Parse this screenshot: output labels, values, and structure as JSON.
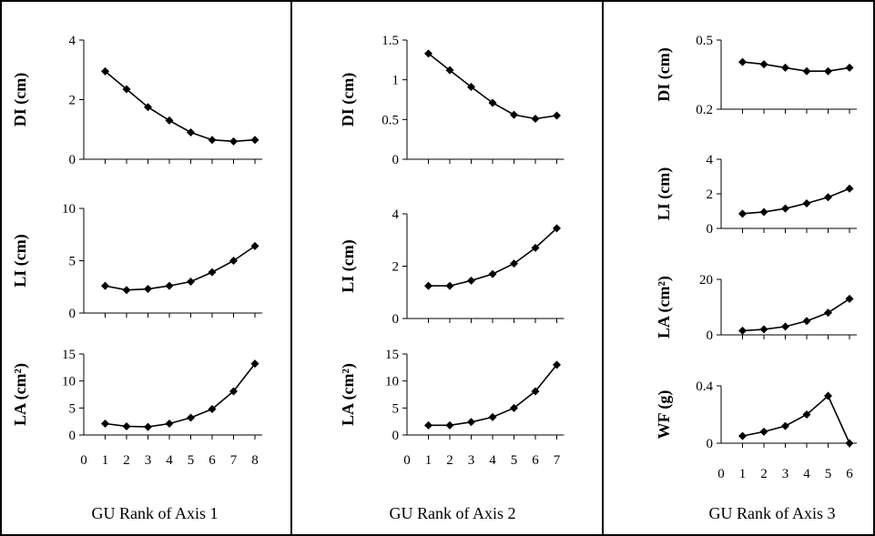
{
  "chart_data": [
    {
      "type": "line",
      "caption": "GU Rank of Axis 1",
      "x": [
        1,
        2,
        3,
        4,
        5,
        6,
        7,
        8
      ],
      "xlim": [
        0,
        8
      ],
      "xticks": [
        0,
        1,
        2,
        3,
        4,
        5,
        6,
        7,
        8
      ],
      "subplots": [
        {
          "ylabel": "DI (cm)",
          "ylim": [
            0,
            4
          ],
          "yticks": [
            0,
            2,
            4
          ],
          "values": [
            2.95,
            2.35,
            1.75,
            1.3,
            0.9,
            0.65,
            0.6,
            0.65
          ]
        },
        {
          "ylabel": "LI (cm)",
          "ylim": [
            0,
            10
          ],
          "yticks": [
            0,
            5,
            10
          ],
          "values": [
            2.6,
            2.2,
            2.3,
            2.6,
            3.0,
            3.9,
            5.0,
            6.4
          ]
        },
        {
          "ylabel": "LA (cm²)",
          "ylim": [
            0,
            15
          ],
          "yticks": [
            0,
            5,
            10,
            15
          ],
          "values": [
            2.1,
            1.6,
            1.5,
            2.1,
            3.2,
            4.8,
            8.1,
            13.2
          ]
        }
      ]
    },
    {
      "type": "line",
      "caption": "GU Rank of Axis 2",
      "x": [
        1,
        2,
        3,
        4,
        5,
        6,
        7
      ],
      "xlim": [
        0,
        7
      ],
      "xticks": [
        0,
        1,
        2,
        3,
        4,
        5,
        6,
        7
      ],
      "subplots": [
        {
          "ylabel": "DI (cm)",
          "ylim": [
            0,
            1.5
          ],
          "yticks": [
            0,
            0.5,
            1,
            1.5
          ],
          "values": [
            1.33,
            1.12,
            0.91,
            0.71,
            0.56,
            0.51,
            0.55
          ]
        },
        {
          "ylabel": "LI (cm)",
          "ylim": [
            0,
            4
          ],
          "yticks": [
            0,
            2,
            4
          ],
          "values": [
            1.25,
            1.25,
            1.45,
            1.7,
            2.1,
            2.7,
            3.45
          ]
        },
        {
          "ylabel": "LA (cm²)",
          "ylim": [
            0,
            15
          ],
          "yticks": [
            0,
            5,
            10,
            15
          ],
          "values": [
            1.8,
            1.8,
            2.4,
            3.3,
            5.0,
            8.1,
            13.0
          ]
        }
      ]
    },
    {
      "type": "line",
      "caption": "GU Rank of Axis 3",
      "x": [
        1,
        2,
        3,
        4,
        5,
        6
      ],
      "xlim": [
        0,
        6
      ],
      "xticks": [
        0,
        1,
        2,
        3,
        4,
        5,
        6
      ],
      "subplots": [
        {
          "ylabel": "DI (cm)",
          "ylim": [
            0.2,
            0.5
          ],
          "yticks": [
            0.2,
            0.5
          ],
          "values": [
            0.405,
            0.395,
            0.38,
            0.365,
            0.365,
            0.38
          ]
        },
        {
          "ylabel": "LI (cm)",
          "ylim": [
            0,
            4
          ],
          "yticks": [
            0,
            2,
            4
          ],
          "values": [
            0.85,
            0.95,
            1.15,
            1.45,
            1.8,
            2.3
          ]
        },
        {
          "ylabel": "LA (cm²)",
          "ylim": [
            0,
            20
          ],
          "yticks": [
            0,
            20
          ],
          "values": [
            1.5,
            2.0,
            3.0,
            5.0,
            8.0,
            13.0
          ]
        },
        {
          "ylabel": "WF (g)",
          "ylim": [
            0,
            0.4
          ],
          "yticks": [
            0,
            0.4
          ],
          "values": [
            0.05,
            0.08,
            0.12,
            0.2,
            0.33,
            0.0
          ]
        }
      ]
    }
  ]
}
